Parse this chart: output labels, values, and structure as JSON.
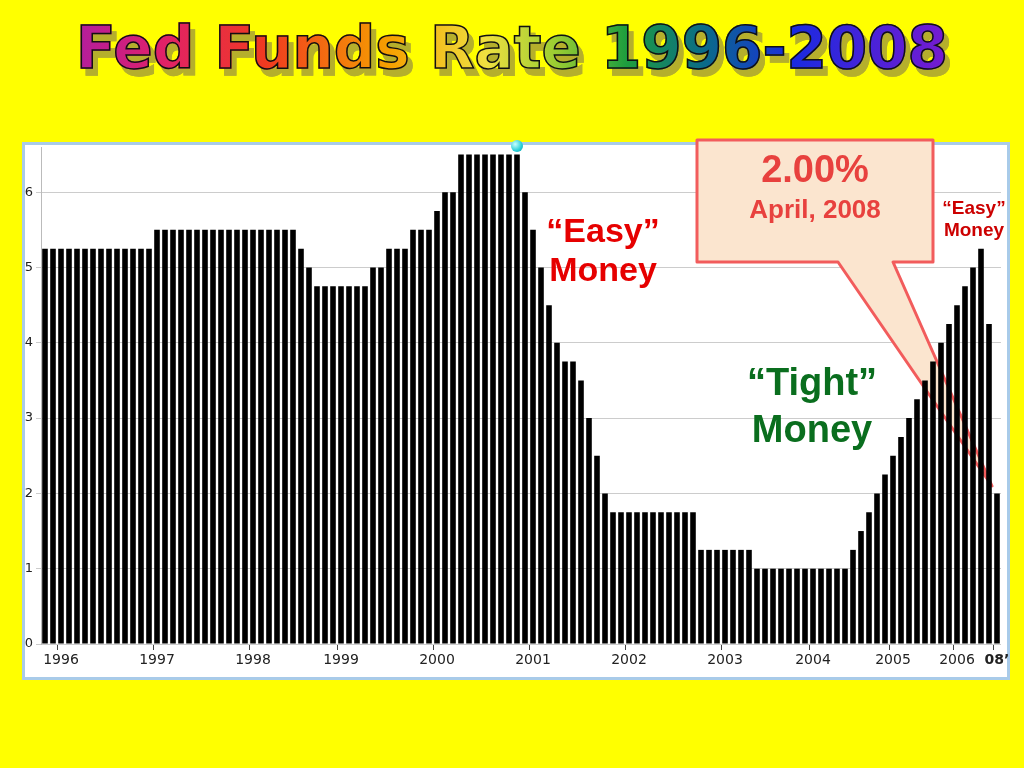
{
  "chart_data": {
    "type": "bar",
    "title": "Fed Funds Rate 1996-2008",
    "categories": [
      null,
      null,
      "1996",
      null,
      null,
      null,
      null,
      null,
      null,
      null,
      null,
      null,
      null,
      null,
      "1997",
      null,
      null,
      null,
      null,
      null,
      null,
      null,
      null,
      null,
      null,
      null,
      "1998",
      null,
      null,
      null,
      null,
      null,
      null,
      null,
      null,
      null,
      null,
      "1999",
      null,
      null,
      null,
      null,
      null,
      null,
      null,
      null,
      null,
      null,
      null,
      "2000",
      null,
      null,
      null,
      null,
      null,
      null,
      null,
      null,
      null,
      null,
      null,
      "2001",
      null,
      null,
      null,
      null,
      null,
      null,
      null,
      null,
      null,
      null,
      null,
      "2002",
      null,
      null,
      null,
      null,
      null,
      null,
      null,
      null,
      null,
      null,
      null,
      "2003",
      null,
      null,
      null,
      null,
      null,
      null,
      null,
      null,
      null,
      null,
      "2004",
      null,
      null,
      null,
      null,
      null,
      null,
      null,
      null,
      null,
      "2005",
      null,
      null,
      null,
      null,
      null,
      null,
      null,
      "2006",
      null,
      null,
      null,
      null,
      "08’"
    ],
    "values": [
      5.25,
      5.25,
      5.25,
      5.25,
      5.25,
      5.25,
      5.25,
      5.25,
      5.25,
      5.25,
      5.25,
      5.25,
      5.25,
      5.25,
      5.5,
      5.5,
      5.5,
      5.5,
      5.5,
      5.5,
      5.5,
      5.5,
      5.5,
      5.5,
      5.5,
      5.5,
      5.5,
      5.5,
      5.5,
      5.5,
      5.5,
      5.5,
      5.25,
      5,
      4.75,
      4.75,
      4.75,
      4.75,
      4.75,
      4.75,
      4.75,
      5,
      5,
      5.25,
      5.25,
      5.25,
      5.5,
      5.5,
      5.5,
      5.75,
      6,
      6,
      6.5,
      6.5,
      6.5,
      6.5,
      6.5,
      6.5,
      6.5,
      6.5,
      6,
      5.5,
      5,
      4.5,
      4,
      3.75,
      3.75,
      3.5,
      3,
      2.5,
      2,
      1.75,
      1.75,
      1.75,
      1.75,
      1.75,
      1.75,
      1.75,
      1.75,
      1.75,
      1.75,
      1.75,
      1.25,
      1.25,
      1.25,
      1.25,
      1.25,
      1.25,
      1.25,
      1,
      1,
      1,
      1,
      1,
      1,
      1,
      1,
      1,
      1,
      1,
      1,
      1.25,
      1.5,
      1.75,
      2,
      2.25,
      2.5,
      2.75,
      3,
      3.25,
      3.5,
      3.75,
      4,
      4.25,
      4.5,
      4.75,
      5,
      5.25,
      4.25,
      2
    ],
    "color": "#000000",
    "ylim": [
      0,
      6.6
    ],
    "yticks": [
      0,
      1,
      2,
      3,
      4,
      5,
      6
    ],
    "grid": "y",
    "annotations": [
      "“Easy”\nMoney",
      "“Tight”\nMoney",
      "“Easy”\nMoney",
      "2.00%\nApril, 2008"
    ]
  }
}
